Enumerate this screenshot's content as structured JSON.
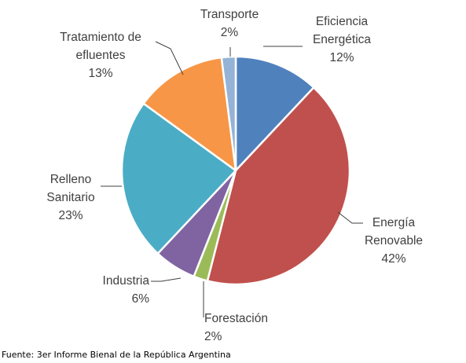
{
  "chart_data": {
    "type": "pie",
    "title": "",
    "start_angle_deg": 0,
    "direction": "clockwise",
    "slices": [
      {
        "label_lines": [
          "Eficiencia",
          "Energética"
        ],
        "value": 12,
        "percent_label": "12%",
        "color": "#4f81bd"
      },
      {
        "label_lines": [
          "Energía",
          "Renovable"
        ],
        "value": 42,
        "percent_label": "42%",
        "color": "#c0504d"
      },
      {
        "label_lines": [
          "Forestación"
        ],
        "value": 2,
        "percent_label": "2%",
        "color": "#9bbb59"
      },
      {
        "label_lines": [
          "Industria"
        ],
        "value": 6,
        "percent_label": "6%",
        "color": "#8064a2"
      },
      {
        "label_lines": [
          "Relleno",
          "Sanitario"
        ],
        "value": 23,
        "percent_label": "23%",
        "color": "#4bacc6"
      },
      {
        "label_lines": [
          "Tratamiento de",
          "efluentes"
        ],
        "value": 13,
        "percent_label": "13%",
        "color": "#f79646"
      },
      {
        "label_lines": [
          "Transporte"
        ],
        "value": 2,
        "percent_label": "2%",
        "color": "#95b3d7"
      }
    ]
  },
  "source": {
    "text": "Fuente: 3er Informe Bienal de la República Argentina"
  }
}
